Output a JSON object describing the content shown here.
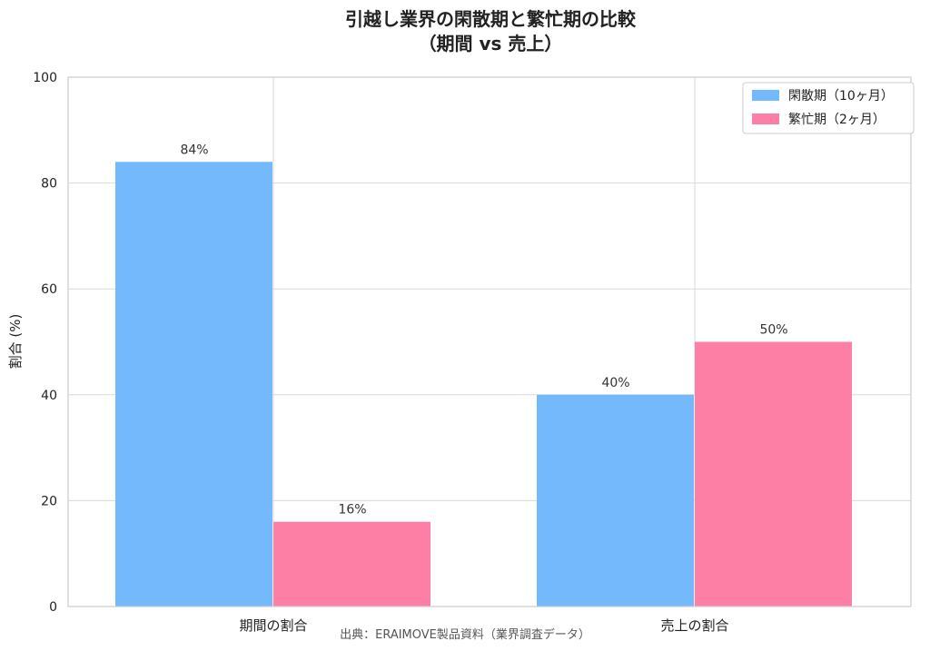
{
  "chart_data": {
    "type": "bar",
    "title": "引越し業界の閑散期と繁忙期の比較",
    "subtitle": "（期間 vs 売上）",
    "categories": [
      "期間の割合",
      "売上の割合"
    ],
    "series": [
      {
        "name": "閑散期（10ヶ月）",
        "values": [
          84,
          40
        ],
        "labels": [
          "84%",
          "40%"
        ],
        "color": "#74b9fb"
      },
      {
        "name": "繁忙期（2ヶ月）",
        "values": [
          16,
          50
        ],
        "labels": [
          "16%",
          "50%"
        ],
        "color": "#fd7fa6"
      }
    ],
    "xlabel": "",
    "ylabel": "割合 (%)",
    "ylim": [
      0,
      100
    ],
    "yticks": [
      0,
      20,
      40,
      60,
      80,
      100
    ],
    "grid": true,
    "legend_position": "top-right",
    "source": "出典：ERAIMOVE製品資料（業界調査データ）"
  }
}
